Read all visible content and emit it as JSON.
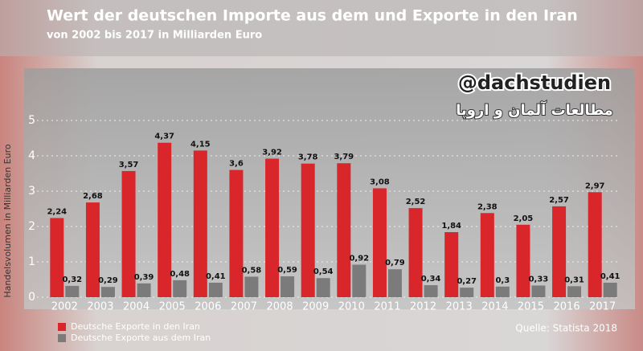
{
  "chart_data": {
    "type": "bar",
    "title": "Wert der deutschen Importe aus dem und Exporte in den Iran",
    "subtitle": "von 2002 bis 2017 in Milliarden Euro",
    "y_label": "Handelsvolumen in Milliarden Euro",
    "source": "Quelle: Statista 2018",
    "watermark": "@dachstudien",
    "watermark_subtitle": "مطالعات آلمان و اروپا",
    "categories": [
      "2002",
      "2003",
      "2004",
      "2005",
      "2006",
      "2007",
      "2008",
      "2009",
      "2010",
      "2011",
      "2012",
      "2013",
      "2014",
      "2015",
      "2016",
      "2017"
    ],
    "series": [
      {
        "name": "Deutsche Exporte in den Iran",
        "color": "#d8262b",
        "values": [
          2.24,
          2.68,
          3.57,
          4.37,
          4.15,
          3.6,
          3.92,
          3.78,
          3.79,
          3.08,
          2.52,
          1.84,
          2.38,
          2.05,
          2.57,
          2.97
        ],
        "value_labels": [
          "2,24",
          "2,68",
          "3,57",
          "4,37",
          "4,15",
          "3,6",
          "3,92",
          "3,78",
          "3,79",
          "3,08",
          "2,52",
          "1,84",
          "2,38",
          "2,05",
          "2,57",
          "2,97"
        ]
      },
      {
        "name": "Deutsche Exporte aus dem Iran",
        "color": "#7b7b7b",
        "values": [
          0.32,
          0.29,
          0.39,
          0.48,
          0.41,
          0.58,
          0.59,
          0.54,
          0.92,
          0.79,
          0.34,
          0.27,
          0.3,
          0.33,
          0.31,
          0.41
        ],
        "value_labels": [
          "0,32",
          "0,29",
          "0,39",
          "0,48",
          "0,41",
          "0,58",
          "0,59",
          "0,54",
          "0,92",
          "0,79",
          "0,34",
          "0,27",
          "0,3",
          "0,33",
          "0,31",
          "0,41"
        ]
      }
    ],
    "ylim": [
      0,
      6.4
    ],
    "yticks": [
      0,
      1,
      2,
      3,
      4,
      5
    ],
    "grid": true,
    "legend": "bottom-left"
  }
}
